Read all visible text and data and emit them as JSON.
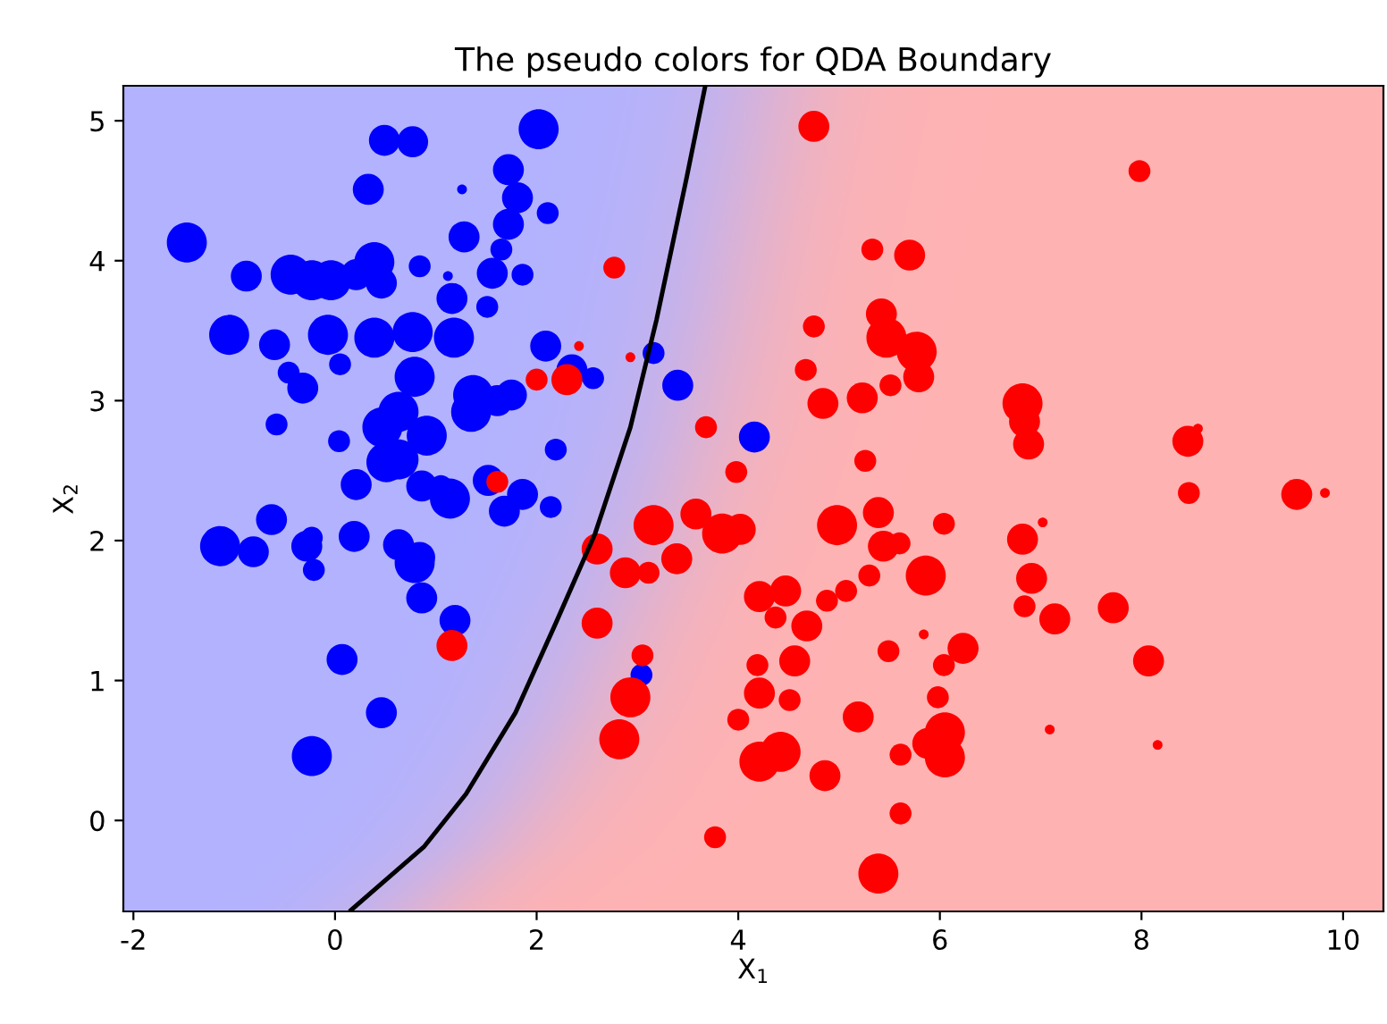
{
  "chart_data": {
    "type": "bubble",
    "title": "The pseudo colors for QDA Boundary",
    "xlabel": "X$_{1}$",
    "ylabel": "X$_{2}$",
    "xlim": [
      -2.1,
      10.4
    ],
    "ylim": [
      -0.65,
      5.25
    ],
    "xticks": [
      -2,
      0,
      2,
      4,
      6,
      8,
      10
    ],
    "yticks": [
      0,
      1,
      2,
      3,
      4,
      5
    ],
    "grid": false,
    "series": [
      {
        "color": "#0000ff",
        "marker": "circle",
        "x": [
          -1.47,
          -0.88,
          -0.44,
          -0.23,
          -0.04,
          0.21,
          0.39,
          0.46,
          -1.05,
          -0.6,
          -0.07,
          0.39,
          0.77,
          1.18,
          0.05,
          -0.32,
          -0.46,
          0.79,
          0.47,
          0.63,
          0.91,
          0.51,
          0.63,
          1.37,
          1.35,
          1.61,
          1.75,
          2.09,
          2.35,
          2.56,
          -0.58,
          0.04,
          0.21,
          0.86,
          1.05,
          1.14,
          1.52,
          1.86,
          1.68,
          2.14,
          2.19,
          -0.63,
          -1.14,
          -0.81,
          -0.28,
          -0.23,
          -0.21,
          0.19,
          0.63,
          0.79,
          0.84,
          0.86,
          1.19,
          0.07,
          0.46,
          -0.23,
          0.49,
          0.77,
          2.02,
          1.72,
          1.81,
          2.11,
          1.72,
          1.26,
          0.33,
          1.28,
          1.65,
          0.84,
          1.56,
          1.86,
          1.12,
          1.16,
          1.51,
          3.04,
          3.4,
          4.16,
          3.16
        ],
        "values": [
          4.13,
          3.89,
          3.9,
          3.86,
          3.86,
          3.9,
          3.99,
          3.84,
          3.47,
          3.4,
          3.47,
          3.45,
          3.49,
          3.45,
          3.26,
          3.09,
          3.2,
          3.17,
          2.81,
          2.92,
          2.75,
          2.56,
          2.58,
          3.04,
          2.92,
          3.0,
          3.04,
          3.39,
          3.22,
          3.16,
          2.83,
          2.71,
          2.4,
          2.39,
          2.39,
          2.3,
          2.43,
          2.33,
          2.21,
          2.24,
          2.65,
          2.15,
          1.96,
          1.92,
          1.96,
          2.02,
          1.79,
          2.03,
          1.97,
          1.84,
          1.88,
          1.59,
          1.43,
          1.15,
          0.77,
          0.46,
          4.86,
          4.85,
          4.94,
          4.65,
          4.45,
          4.34,
          4.26,
          4.51,
          4.51,
          4.17,
          4.08,
          3.96,
          3.91,
          3.9,
          3.89,
          3.73,
          3.67,
          1.04,
          3.11,
          2.74,
          3.34
        ],
        "sizes": [
          1,
          0.6,
          1,
          1,
          1,
          0.6,
          1,
          0.6,
          1,
          0.6,
          1,
          1,
          1,
          1,
          0.3,
          0.6,
          0.3,
          1,
          1,
          1,
          1,
          1,
          1,
          1,
          1,
          0.6,
          0.6,
          0.6,
          0.6,
          0.3,
          0.3,
          0.3,
          0.6,
          0.6,
          0.3,
          1,
          0.6,
          0.6,
          0.6,
          0.3,
          0.3,
          0.6,
          1,
          0.6,
          0.6,
          0.3,
          0.3,
          0.6,
          0.6,
          1,
          0.6,
          0.6,
          0.6,
          0.6,
          0.6,
          1,
          0.6,
          0.6,
          1,
          0.6,
          0.6,
          0.3,
          0.6,
          0.06,
          0.6,
          0.6,
          0.3,
          0.3,
          0.6,
          0.3,
          0.06,
          0.6,
          0.3,
          0.3,
          0.6,
          0.6,
          0.3
        ]
      },
      {
        "color": "#ff0000",
        "marker": "circle",
        "x": [
          2.77,
          2.93,
          2.42,
          2.0,
          2.3,
          1.61,
          1.16,
          2.6,
          2.88,
          3.11,
          2.6,
          3.05,
          2.93,
          2.82,
          4.75,
          7.98,
          5.33,
          5.7,
          5.42,
          5.47,
          5.77,
          5.79,
          4.75,
          4.67,
          4.84,
          5.23,
          5.51,
          3.68,
          3.98,
          5.26,
          6.82,
          6.84,
          6.88,
          8.46,
          8.56,
          8.47,
          9.54,
          9.82,
          3.16,
          3.58,
          3.84,
          4.02,
          3.39,
          4.98,
          5.39,
          5.44,
          5.6,
          6.04,
          5.86,
          5.3,
          6.82,
          7.02,
          6.91,
          6.84,
          7.14,
          7.72,
          8.07,
          7.09,
          8.16,
          4.21,
          4.47,
          4.68,
          4.88,
          5.07,
          4.37,
          4.19,
          4.56,
          4.21,
          4.51,
          4.0,
          5.19,
          5.49,
          5.84,
          6.23,
          6.04,
          5.98,
          6.05,
          5.88,
          5.61,
          6.05,
          4.21,
          4.42,
          4.86,
          5.61,
          3.77,
          5.39
        ],
        "values": [
          3.95,
          3.31,
          3.39,
          3.15,
          3.15,
          2.42,
          1.25,
          1.94,
          1.77,
          1.77,
          1.41,
          1.18,
          0.88,
          0.58,
          4.96,
          4.64,
          4.08,
          4.04,
          3.62,
          3.45,
          3.35,
          3.17,
          3.53,
          3.22,
          2.98,
          3.02,
          3.11,
          2.81,
          2.49,
          2.57,
          2.98,
          2.85,
          2.69,
          2.71,
          2.8,
          2.34,
          2.33,
          2.34,
          2.11,
          2.19,
          2.05,
          2.08,
          1.87,
          2.11,
          2.2,
          1.96,
          1.98,
          2.12,
          1.75,
          1.75,
          2.01,
          2.13,
          1.73,
          1.53,
          1.44,
          1.52,
          1.14,
          0.65,
          0.54,
          1.6,
          1.64,
          1.39,
          1.57,
          1.64,
          1.45,
          1.11,
          1.14,
          0.91,
          0.86,
          0.72,
          0.74,
          1.21,
          1.33,
          1.23,
          1.11,
          0.88,
          0.63,
          0.55,
          0.47,
          0.45,
          0.42,
          0.49,
          0.32,
          0.05,
          -0.12,
          -0.38
        ],
        "sizes": [
          0.3,
          0.06,
          0.06,
          0.3,
          0.6,
          0.3,
          0.6,
          0.6,
          0.6,
          0.3,
          0.6,
          0.3,
          1,
          1,
          0.6,
          0.3,
          0.3,
          0.6,
          0.6,
          1,
          1,
          0.6,
          0.3,
          0.3,
          0.6,
          0.6,
          0.3,
          0.3,
          0.3,
          0.3,
          1,
          0.6,
          0.6,
          0.6,
          0.06,
          0.3,
          0.6,
          0.06,
          1,
          0.6,
          1,
          0.6,
          0.6,
          1,
          0.6,
          0.6,
          0.3,
          0.3,
          1,
          0.3,
          0.6,
          0.06,
          0.6,
          0.3,
          0.6,
          0.6,
          0.6,
          0.06,
          0.06,
          0.6,
          0.6,
          0.6,
          0.3,
          0.3,
          0.3,
          0.3,
          0.6,
          0.6,
          0.3,
          0.3,
          0.6,
          0.3,
          0.06,
          0.6,
          0.3,
          0.3,
          1,
          0.6,
          0.3,
          1,
          1,
          1,
          0.6,
          0.3,
          0.3,
          1
        ]
      },
      {
        "type": "line",
        "marker": "none",
        "color": "#000000",
        "x": [
          0.16,
          0.88,
          1.3,
          1.79,
          2.19,
          2.58,
          2.93,
          3.19,
          3.49,
          3.67
        ],
        "values": [
          -0.64,
          -0.19,
          0.19,
          0.77,
          1.41,
          2.05,
          2.81,
          3.58,
          4.6,
          5.24
        ]
      }
    ]
  }
}
